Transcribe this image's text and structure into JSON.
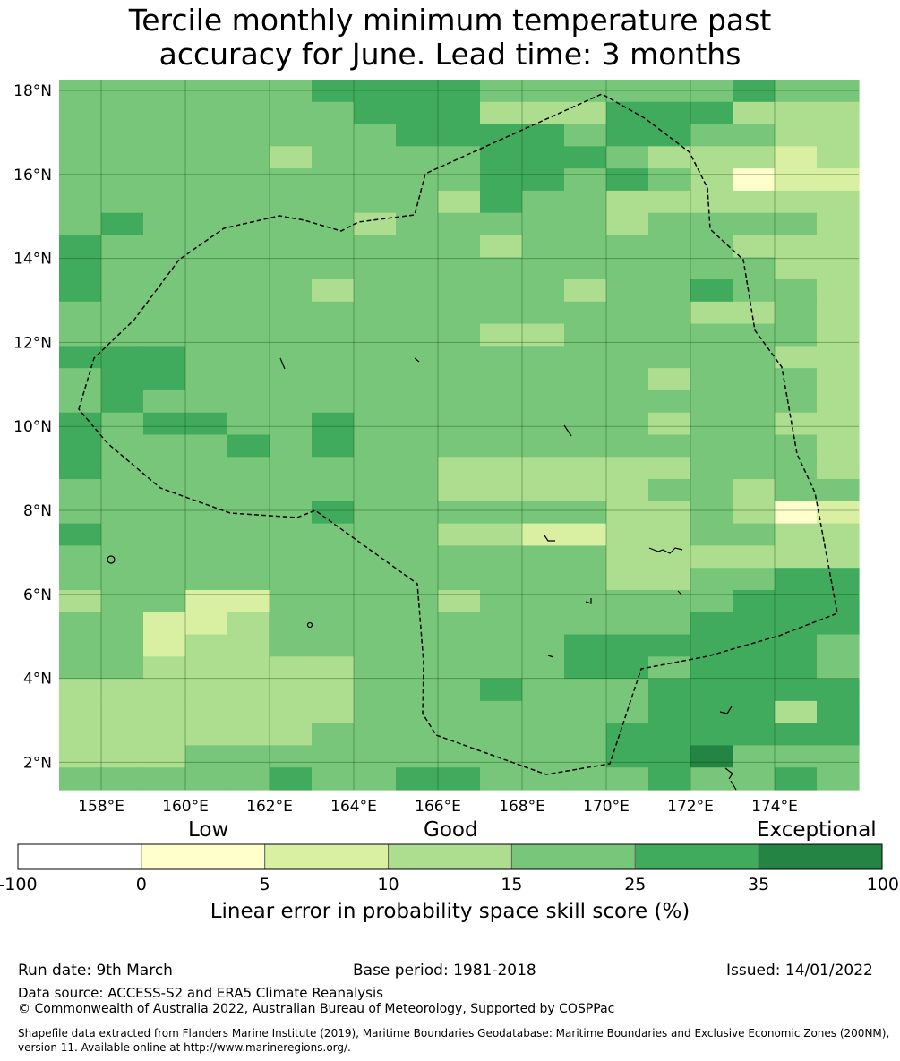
{
  "title": {
    "line1": "Tercile monthly minimum temperature past",
    "line2": "accuracy for June. Lead time: 3 months"
  },
  "map": {
    "lat_labels": [
      "18°N",
      "16°N",
      "14°N",
      "12°N",
      "10°N",
      "8°N",
      "6°N",
      "4°N",
      "2°N"
    ],
    "lat_values": [
      18,
      16,
      14,
      12,
      10,
      8,
      6,
      4,
      2
    ],
    "lon_labels": [
      "158°E",
      "160°E",
      "162°E",
      "164°E",
      "166°E",
      "168°E",
      "170°E",
      "172°E",
      "174°E"
    ],
    "lon_values": [
      158,
      160,
      162,
      164,
      166,
      168,
      170,
      172,
      174
    ],
    "lon_range": [
      157,
      176
    ],
    "lat_range": [
      1.4,
      18.25
    ],
    "first_row_lat_top": 18.25,
    "cell_deg": 0.8333,
    "class_colors": [
      "#ffffcc",
      "#d9f0a3",
      "#addd8e",
      "#78c679",
      "#41ab5d",
      "#238443"
    ],
    "grid_rows": [
      "3333334444333333433",
      "3333333444222444222",
      "3333333344443443322",
      "3333323333444322212",
      "3333333333443432011",
      "3333333332433222222",
      "3433333233333233332",
      "4333333333233333222",
      "4333333333333333322",
      "4333332333332334332",
      "3333333333333332232",
      "3333333333223333332",
      "4443333333333333322",
      "3443333333333323332",
      "3433333333333333332",
      "4344334333333323322",
      "4333434333333333332",
      "4333333332222223332",
      "3333333332222233233",
      "3333334333333223201",
      "4333333332211223322",
      "3333333333333222222",
      "3333333333333223344",
      "2331133332333333444",
      "3311233333333334444",
      "3312233333334444443",
      "3322222333334434443",
      "2222222333433344444",
      "2222222333333344424",
      "2222223333333444444",
      "2223333333333445333",
      "3333343344333343343"
    ]
  },
  "colorbar": {
    "categories": [
      "Low",
      "Good",
      "Exceptional"
    ],
    "ticks": [
      "-100",
      "0",
      "5",
      "10",
      "15",
      "25",
      "35",
      "100"
    ],
    "colors": [
      "#ffffff",
      "#ffffcc",
      "#d9f0a3",
      "#addd8e",
      "#78c679",
      "#41ab5d",
      "#238443"
    ],
    "label": "Linear error in probability space skill score (%)"
  },
  "footer": {
    "run_date": "Run date: 9th March",
    "base_period": "Base period: 1981-2018",
    "issued": "Issued: 14/01/2022",
    "data_source": "Data source: ACCESS-S2 and ERA5 Climate Reanalysis",
    "copyright": "© Commonwealth of Australia 2022, Australian Bureau of Meteorology, Supported by COSPPac",
    "shapefile": "Shapefile data extracted from Flanders Marine Institute (2019), Maritime Boundaries Geodatabase: Maritime Boundaries and Exclusive Economic Zones (200NM), version 11. Available online at http://www.marineregions.org/."
  }
}
